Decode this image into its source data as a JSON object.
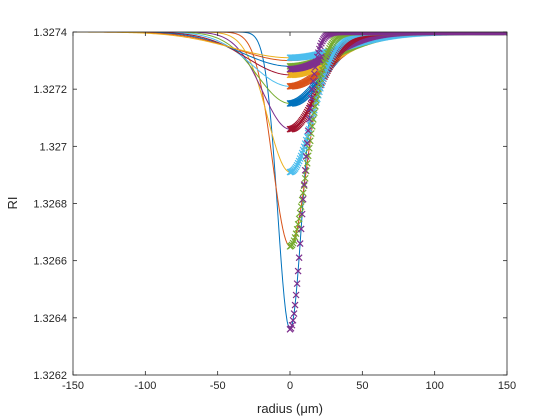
{
  "chart_data": {
    "type": "line",
    "title": "",
    "xlabel": "radius (μm)",
    "ylabel": "RI",
    "xlim": [
      -150,
      150
    ],
    "ylim": [
      1.3262,
      1.3274
    ],
    "xticks": [
      "-150",
      "-100",
      "-50",
      "0",
      "50",
      "100",
      "150"
    ],
    "yticks": [
      "1.3262",
      "1.3264",
      "1.3266",
      "1.3268",
      "1.327",
      "1.3272",
      "1.3274"
    ],
    "grid": false,
    "legend": "none",
    "marker_series_x_range": [
      0,
      150
    ],
    "series": [
      {
        "color": "#0072BD",
        "center": 1.32636,
        "width": 12
      },
      {
        "color": "#D95319",
        "center": 1.32665,
        "width": 17
      },
      {
        "color": "#EDB120",
        "center": 1.32691,
        "width": 22
      },
      {
        "color": "#7E2F8E",
        "center": 1.32706,
        "width": 27
      },
      {
        "color": "#77AC30",
        "center": 1.32715,
        "width": 32
      },
      {
        "color": "#4DBEEE",
        "center": 1.32721,
        "width": 37
      },
      {
        "color": "#A2142F",
        "center": 1.32725,
        "width": 42
      },
      {
        "color": "#0072BD",
        "center": 1.32728,
        "width": 47
      },
      {
        "color": "#D95319",
        "center": 1.3273,
        "width": 52
      },
      {
        "color": "#EDB120",
        "center": 1.32731,
        "width": 57
      }
    ],
    "marker_series": [
      {
        "color": "#0072BD",
        "center": 1.32715,
        "width": 32
      },
      {
        "color": "#D95319",
        "center": 1.32721,
        "width": 37
      },
      {
        "color": "#EDB120",
        "center": 1.32725,
        "width": 42
      },
      {
        "color": "#77AC30",
        "center": 1.32728,
        "width": 47
      },
      {
        "color": "#4DBEEE",
        "center": 1.32731,
        "width": 52
      },
      {
        "color": "#7E2F8E",
        "center": 1.32727,
        "width": 40
      },
      {
        "color": "#A2142F",
        "center": 1.32706,
        "width": 27
      },
      {
        "color": "#4DBEEE",
        "center": 1.32691,
        "width": 22
      },
      {
        "color": "#77AC30",
        "center": 1.32665,
        "width": 17
      },
      {
        "color": "#7E2F8E",
        "center": 1.32636,
        "width": 12
      }
    ]
  }
}
